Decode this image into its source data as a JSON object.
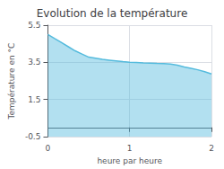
{
  "chart_data": {
    "type": "area",
    "title": "Evolution de la température",
    "xlabel": "heure par heure",
    "ylabel": "Température en °C",
    "x": [
      0.0,
      0.083,
      0.167,
      0.25,
      0.333,
      0.417,
      0.5,
      0.583,
      0.667,
      0.75,
      0.833,
      0.917,
      1.0,
      1.083,
      1.167,
      1.25,
      1.333,
      1.417,
      1.5,
      1.583,
      1.667,
      1.75,
      1.833,
      1.917,
      2.0
    ],
    "values": [
      5.0,
      4.78,
      4.56,
      4.34,
      4.12,
      3.95,
      3.78,
      3.72,
      3.66,
      3.62,
      3.58,
      3.54,
      3.51,
      3.49,
      3.47,
      3.46,
      3.44,
      3.43,
      3.41,
      3.35,
      3.25,
      3.18,
      3.1,
      3.0,
      2.88
    ],
    "color": "#55bbdd",
    "xlim": [
      0,
      2
    ],
    "xticks": [
      0,
      1,
      2
    ],
    "ylim": [
      -0.5,
      5.5
    ],
    "yticks": [
      -0.5,
      1.5,
      3.5,
      5.5
    ],
    "grid": true
  }
}
